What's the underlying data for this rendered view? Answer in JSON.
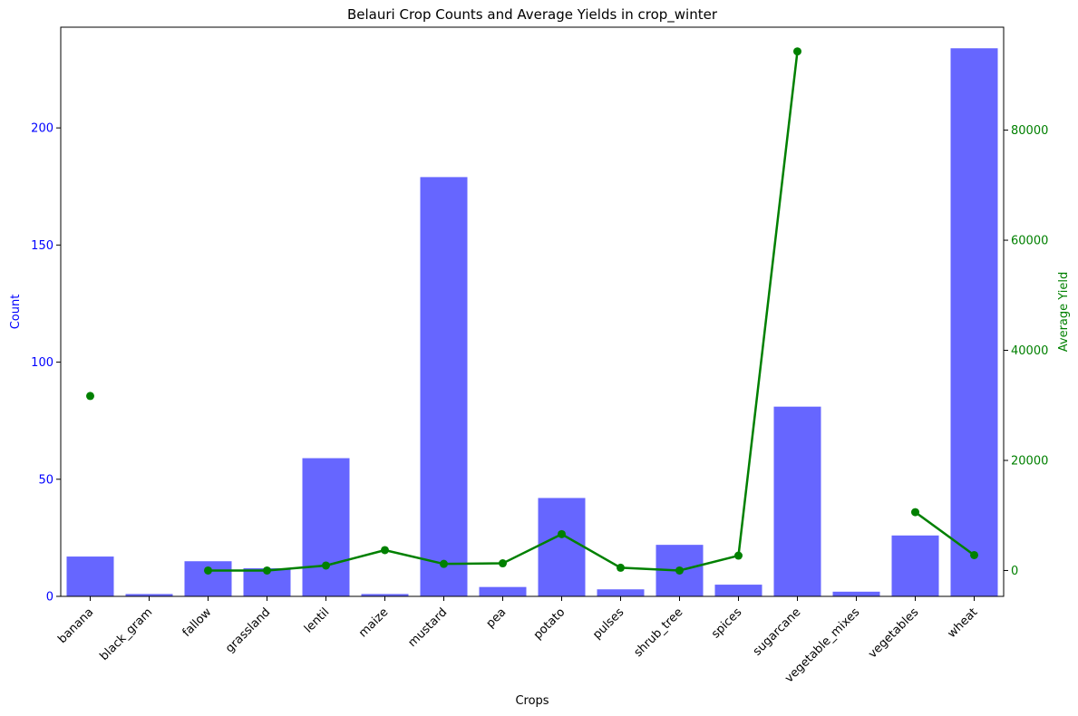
{
  "chart_data": {
    "type": "bar",
    "title": "Belauri Crop Counts and Average Yields in crop_winter",
    "xlabel": "Crops",
    "ylabel": "Count",
    "y2label": "Average Yield",
    "categories": [
      "banana",
      "black_gram",
      "fallow",
      "grassland",
      "lentil",
      "maize",
      "mustard",
      "pea",
      "potato",
      "pulses",
      "shrub_tree",
      "spices",
      "sugarcane",
      "vegetable_mixes",
      "vegetables",
      "wheat"
    ],
    "ylim": [
      0,
      243
    ],
    "yticks": [
      0,
      50,
      100,
      150,
      200
    ],
    "y2lim": [
      -4700,
      98700
    ],
    "y2ticks": [
      0,
      20000,
      40000,
      60000,
      80000
    ],
    "series": [
      {
        "type": "bar",
        "axis": "left",
        "color": "#6666ff",
        "values": [
          17,
          1,
          15,
          12,
          59,
          1,
          179,
          4,
          42,
          3,
          22,
          5,
          81,
          2,
          26,
          234
        ]
      },
      {
        "type": "line",
        "axis": "right",
        "color": "#008000",
        "values": [
          31700,
          null,
          0,
          0,
          900,
          3700,
          1200,
          1300,
          6600,
          500,
          0,
          2700,
          94300,
          null,
          10600,
          2800
        ]
      }
    ],
    "colors": {
      "left_axis": "#0000ff",
      "right_axis": "#008000"
    },
    "grid": false
  }
}
